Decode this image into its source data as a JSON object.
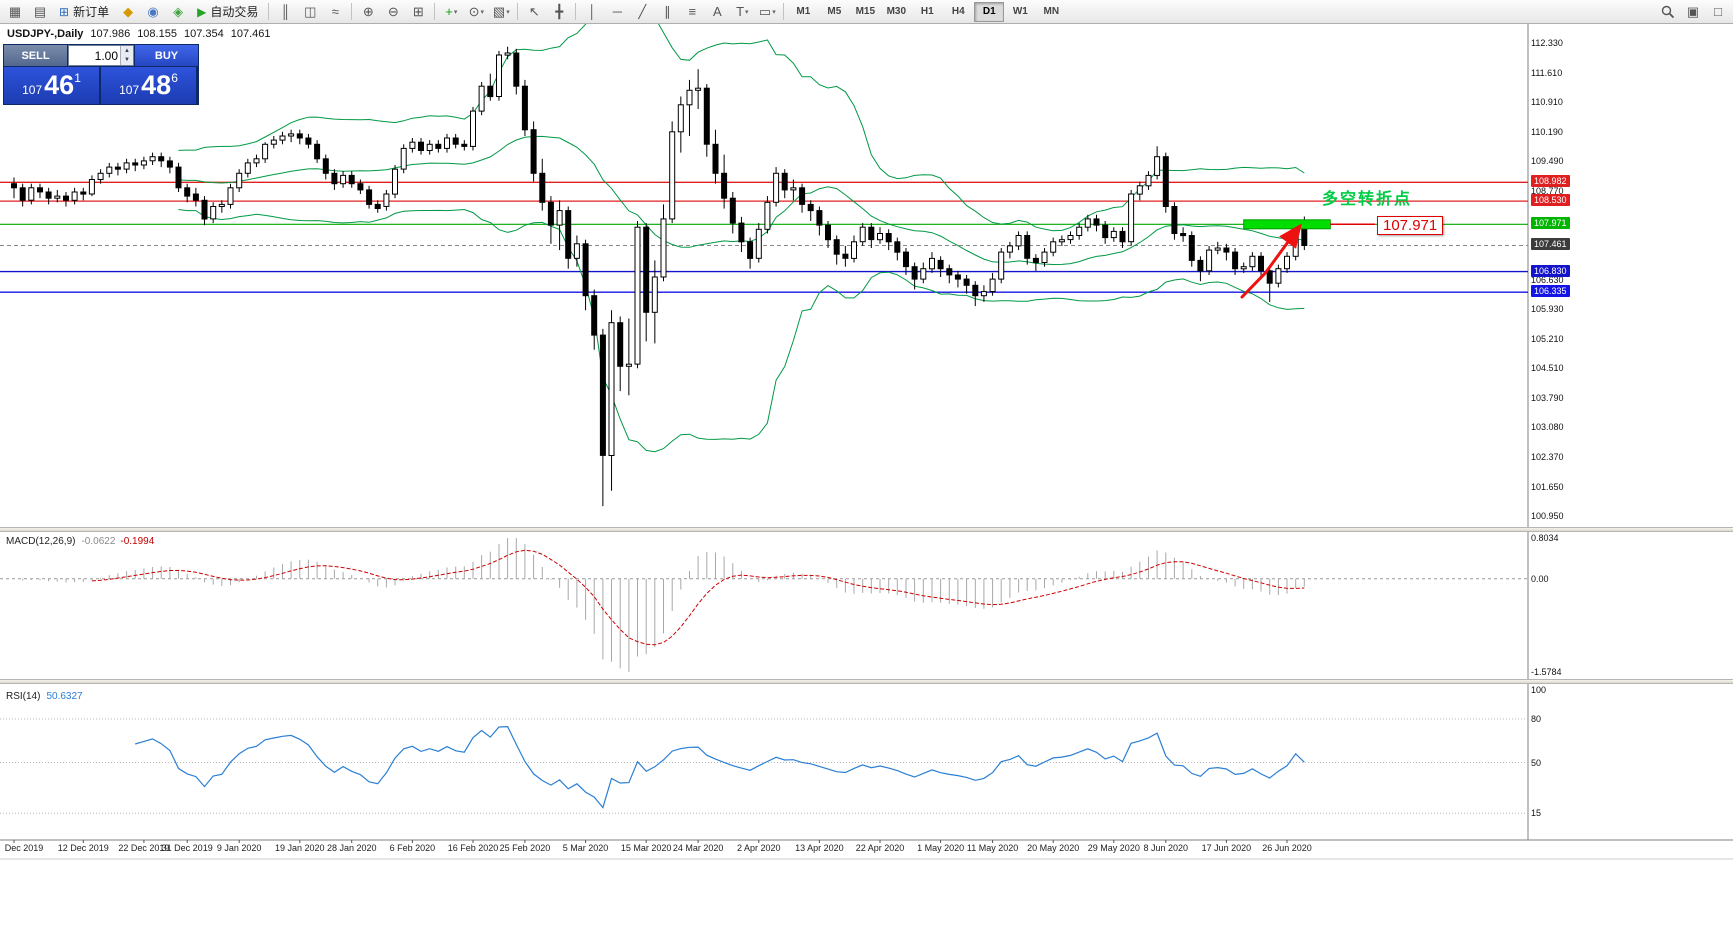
{
  "toolbar": {
    "new_order": "新订单",
    "autotrading": "自动交易",
    "items": [
      {
        "t": "icon",
        "name": "new-chart-icon",
        "g": "▦"
      },
      {
        "t": "icon",
        "name": "profiles-icon",
        "g": "▤"
      },
      {
        "t": "btn",
        "name": "new-order-button",
        "g": "⊞",
        "gc": "#2d6dc0",
        "label_key": "new_order"
      },
      {
        "t": "icon",
        "name": "market-watch-icon",
        "g": "◆",
        "c": "#d69a00"
      },
      {
        "t": "icon",
        "name": "navigator-icon",
        "g": "◉",
        "c": "#4a79c4"
      },
      {
        "t": "icon",
        "name": "terminal-icon",
        "g": "◈",
        "c": "#3fa33f"
      },
      {
        "t": "btn",
        "name": "autotrading-button",
        "g": "▶",
        "gc": "#27a327",
        "label_key": "autotrading"
      },
      {
        "t": "sep"
      },
      {
        "t": "icon",
        "name": "bar-chart-icon",
        "g": "║"
      },
      {
        "t": "icon",
        "name": "candlestick-chart-icon",
        "g": "◫"
      },
      {
        "t": "icon",
        "name": "line-chart-icon",
        "g": "≈"
      },
      {
        "t": "sep"
      },
      {
        "t": "icon",
        "name": "zoom-in-icon",
        "g": "⊕"
      },
      {
        "t": "icon",
        "name": "zoom-out-icon",
        "g": "⊖"
      },
      {
        "t": "icon",
        "name": "tile-windows-icon",
        "g": "⊞"
      },
      {
        "t": "sep"
      },
      {
        "t": "icon",
        "name": "indicators-icon",
        "g": "+",
        "c": "#1d9d1d",
        "caret": true
      },
      {
        "t": "icon",
        "name": "periods-icon",
        "g": "⊙",
        "caret": true
      },
      {
        "t": "icon",
        "name": "templates-icon",
        "g": "▧",
        "caret": true
      },
      {
        "t": "sep"
      },
      {
        "t": "icon",
        "name": "cursor-icon",
        "g": "↖"
      },
      {
        "t": "icon",
        "name": "crosshair-icon",
        "g": "╋"
      },
      {
        "t": "sep"
      },
      {
        "t": "icon",
        "name": "vertical-line-icon",
        "g": "│"
      },
      {
        "t": "icon",
        "name": "horizontal-line-icon",
        "g": "─"
      },
      {
        "t": "icon",
        "name": "trendline-icon",
        "g": "╱"
      },
      {
        "t": "icon",
        "name": "equidistant-channel-icon",
        "g": "∥"
      },
      {
        "t": "icon",
        "name": "fibonacci-icon",
        "g": "≡"
      },
      {
        "t": "icon",
        "name": "text-icon",
        "g": "A"
      },
      {
        "t": "icon",
        "name": "text-label-icon",
        "g": "T",
        "caret": true
      },
      {
        "t": "icon",
        "name": "shapes-icon",
        "g": "▭",
        "caret": true
      },
      {
        "t": "sep"
      }
    ],
    "timeframes": [
      "M1",
      "M5",
      "M15",
      "M30",
      "H1",
      "H4",
      "D1",
      "W1",
      "MN"
    ],
    "active_timeframe": "D1",
    "right_items": [
      {
        "name": "search-icon",
        "g": ""
      },
      {
        "name": "data-window-icon",
        "g": "▣"
      },
      {
        "name": "popup-prices-icon",
        "g": "□"
      }
    ]
  },
  "chart_header": {
    "symbol": "USDJPY-,Daily",
    "open": "107.986",
    "high": "108.155",
    "low": "107.354",
    "close": "107.461"
  },
  "trade_panel": {
    "sell_label": "SELL",
    "buy_label": "BUY",
    "lot_value": "1.00",
    "sell_price": {
      "prefix": "107",
      "main": "46",
      "sup": "1"
    },
    "buy_price": {
      "prefix": "107",
      "main": "48",
      "sup": "6"
    }
  },
  "annotations": {
    "turning_point_text": "多空转折点",
    "price_label": "107.971"
  },
  "indicators": {
    "macd": {
      "label": "MACD(12,26,9)",
      "value_main": "-0.0622",
      "value_signal": "-0.1994",
      "axis_top": "0.8034",
      "axis_zero": "0.00",
      "axis_bottom": "-1.5784"
    },
    "rsi": {
      "label": "RSI(14)",
      "value": "50.6327",
      "axis": [
        100,
        80,
        50,
        15
      ],
      "levels": [
        80,
        50,
        15
      ]
    }
  },
  "price_axis": {
    "regular": [
      "112.330",
      "111.610",
      "110.910",
      "110.190",
      "109.490",
      "108.770",
      "106.630",
      "105.930",
      "105.210",
      "104.510",
      "103.790",
      "103.080",
      "102.370",
      "101.650",
      "100.950"
    ],
    "special": [
      {
        "value": "108.982",
        "color": "#e02020"
      },
      {
        "value": "108.530",
        "color": "#e02020"
      },
      {
        "value": "107.971",
        "color": "#00b400"
      },
      {
        "value": "107.461",
        "color": "#3c3c3c"
      },
      {
        "value": "106.830",
        "color": "#1414cc"
      },
      {
        "value": "106.335",
        "color": "#1414e6"
      }
    ]
  },
  "time_axis": {
    "labels": [
      "Dec 2019",
      "12 Dec 2019",
      "22 Dec 2019",
      "31 Dec 2019",
      "9 Jan 2020",
      "19 Jan 2020",
      "28 Jan 2020",
      "6 Feb 2020",
      "16 Feb 2020",
      "25 Feb 2020",
      "5 Mar 2020",
      "15 Mar 2020",
      "24 Mar 2020",
      "2 Apr 2020",
      "13 Apr 2020",
      "22 Apr 2020",
      "1 May 2020",
      "11 May 2020",
      "20 May 2020",
      "29 May 2020",
      "8 Jun 2020",
      "17 Jun 2020",
      "26 Jun 2020"
    ],
    "tick_indices": [
      0,
      8,
      15,
      20,
      26,
      33,
      39,
      46,
      53,
      59,
      66,
      73,
      79,
      86,
      93,
      100,
      107,
      113,
      120,
      127,
      133,
      140,
      147
    ]
  },
  "chart_data": {
    "type": "candlestick",
    "symbol": "USDJPY",
    "timeframe": "Daily",
    "price_range": [
      100.7,
      112.75
    ],
    "ohlc": [
      [
        108.95,
        109.1,
        108.6,
        108.85
      ],
      [
        108.85,
        108.95,
        108.4,
        108.55
      ],
      [
        108.55,
        108.95,
        108.45,
        108.85
      ],
      [
        108.85,
        108.95,
        108.6,
        108.75
      ],
      [
        108.75,
        108.85,
        108.45,
        108.6
      ],
      [
        108.6,
        108.8,
        108.5,
        108.65
      ],
      [
        108.65,
        108.75,
        108.4,
        108.55
      ],
      [
        108.55,
        108.85,
        108.45,
        108.75
      ],
      [
        108.75,
        108.85,
        108.55,
        108.7
      ],
      [
        108.7,
        109.15,
        108.65,
        109.05
      ],
      [
        109.05,
        109.3,
        108.95,
        109.2
      ],
      [
        109.2,
        109.45,
        109.1,
        109.35
      ],
      [
        109.35,
        109.45,
        109.15,
        109.3
      ],
      [
        109.3,
        109.55,
        109.2,
        109.45
      ],
      [
        109.45,
        109.55,
        109.25,
        109.4
      ],
      [
        109.4,
        109.6,
        109.3,
        109.5
      ],
      [
        109.5,
        109.7,
        109.4,
        109.6
      ],
      [
        109.6,
        109.7,
        109.35,
        109.5
      ],
      [
        109.5,
        109.6,
        109.2,
        109.35
      ],
      [
        109.35,
        109.45,
        108.75,
        108.85
      ],
      [
        108.85,
        108.95,
        108.5,
        108.65
      ],
      [
        108.7,
        108.85,
        108.4,
        108.55
      ],
      [
        108.55,
        108.65,
        107.95,
        108.1
      ],
      [
        108.1,
        108.5,
        108.0,
        108.4
      ],
      [
        108.4,
        108.55,
        108.25,
        108.45
      ],
      [
        108.45,
        108.95,
        108.35,
        108.85
      ],
      [
        108.85,
        109.3,
        108.75,
        109.2
      ],
      [
        109.2,
        109.55,
        109.1,
        109.45
      ],
      [
        109.45,
        109.65,
        109.35,
        109.55
      ],
      [
        109.55,
        109.95,
        109.45,
        109.9
      ],
      [
        109.9,
        110.1,
        109.8,
        110.0
      ],
      [
        110.0,
        110.2,
        109.9,
        110.1
      ],
      [
        110.1,
        110.25,
        109.95,
        110.15
      ],
      [
        110.15,
        110.25,
        109.9,
        110.05
      ],
      [
        110.05,
        110.15,
        109.8,
        109.9
      ],
      [
        109.9,
        110.0,
        109.45,
        109.55
      ],
      [
        109.55,
        109.65,
        109.05,
        109.2
      ],
      [
        109.2,
        109.3,
        108.8,
        108.95
      ],
      [
        108.95,
        109.25,
        108.85,
        109.15
      ],
      [
        109.15,
        109.25,
        108.85,
        108.95
      ],
      [
        108.95,
        109.05,
        108.7,
        108.8
      ],
      [
        108.8,
        108.9,
        108.35,
        108.45
      ],
      [
        108.45,
        108.55,
        108.25,
        108.35
      ],
      [
        108.4,
        108.8,
        108.3,
        108.7
      ],
      [
        108.7,
        109.4,
        108.6,
        109.3
      ],
      [
        109.3,
        109.9,
        109.2,
        109.8
      ],
      [
        109.8,
        110.05,
        109.7,
        109.95
      ],
      [
        109.95,
        110.05,
        109.65,
        109.75
      ],
      [
        109.75,
        110.0,
        109.65,
        109.9
      ],
      [
        109.9,
        110.0,
        109.7,
        109.8
      ],
      [
        109.8,
        110.15,
        109.7,
        110.05
      ],
      [
        110.05,
        110.15,
        109.8,
        109.9
      ],
      [
        109.9,
        110.0,
        109.75,
        109.85
      ],
      [
        109.85,
        110.8,
        109.75,
        110.7
      ],
      [
        110.7,
        111.4,
        110.6,
        111.3
      ],
      [
        111.3,
        111.6,
        110.95,
        111.05
      ],
      [
        111.05,
        112.15,
        110.95,
        112.05
      ],
      [
        112.05,
        112.25,
        111.95,
        112.1
      ],
      [
        112.1,
        112.2,
        111.1,
        111.3
      ],
      [
        111.3,
        111.45,
        110.1,
        110.25
      ],
      [
        110.25,
        110.45,
        109.0,
        109.2
      ],
      [
        109.2,
        109.55,
        108.3,
        108.5
      ],
      [
        108.5,
        108.65,
        107.5,
        107.95
      ],
      [
        107.95,
        108.55,
        107.35,
        108.3
      ],
      [
        108.3,
        108.4,
        106.9,
        107.15
      ],
      [
        107.15,
        107.7,
        106.95,
        107.5
      ],
      [
        107.5,
        107.6,
        105.9,
        106.25
      ],
      [
        106.25,
        106.4,
        104.95,
        105.3
      ],
      [
        105.3,
        105.45,
        101.18,
        102.4
      ],
      [
        102.4,
        105.9,
        101.55,
        105.6
      ],
      [
        105.6,
        105.75,
        103.95,
        104.55
      ],
      [
        104.55,
        105.7,
        103.85,
        104.6
      ],
      [
        104.6,
        108.05,
        104.5,
        107.9
      ],
      [
        107.9,
        108.0,
        105.15,
        105.85
      ],
      [
        105.85,
        107.1,
        105.1,
        106.7
      ],
      [
        106.7,
        108.45,
        106.6,
        108.1
      ],
      [
        108.1,
        110.45,
        108.0,
        110.2
      ],
      [
        110.2,
        111.05,
        109.7,
        110.85
      ],
      [
        110.85,
        111.45,
        110.1,
        111.2
      ],
      [
        111.2,
        111.71,
        110.75,
        111.25
      ],
      [
        111.25,
        111.35,
        109.6,
        109.9
      ],
      [
        109.9,
        110.25,
        108.95,
        109.2
      ],
      [
        109.2,
        109.65,
        108.35,
        108.6
      ],
      [
        108.6,
        108.75,
        107.75,
        108.0
      ],
      [
        108.0,
        108.15,
        107.3,
        107.55
      ],
      [
        107.55,
        107.65,
        106.9,
        107.15
      ],
      [
        107.15,
        108.0,
        107.05,
        107.85
      ],
      [
        107.85,
        108.65,
        107.75,
        108.5
      ],
      [
        108.5,
        109.35,
        108.4,
        109.2
      ],
      [
        109.2,
        109.3,
        108.6,
        108.8
      ],
      [
        108.8,
        109.05,
        108.55,
        108.85
      ],
      [
        108.85,
        108.95,
        108.25,
        108.45
      ],
      [
        108.45,
        108.55,
        108.05,
        108.3
      ],
      [
        108.3,
        108.4,
        107.7,
        107.95
      ],
      [
        107.95,
        108.05,
        107.4,
        107.6
      ],
      [
        107.6,
        107.7,
        107.0,
        107.25
      ],
      [
        107.25,
        107.45,
        106.95,
        107.15
      ],
      [
        107.15,
        107.7,
        107.05,
        107.55
      ],
      [
        107.55,
        108.0,
        107.45,
        107.9
      ],
      [
        107.9,
        108.0,
        107.4,
        107.6
      ],
      [
        107.6,
        107.9,
        107.5,
        107.75
      ],
      [
        107.75,
        107.85,
        107.35,
        107.55
      ],
      [
        107.55,
        107.65,
        107.1,
        107.3
      ],
      [
        107.3,
        107.4,
        106.75,
        106.95
      ],
      [
        106.95,
        107.05,
        106.4,
        106.65
      ],
      [
        106.65,
        107.05,
        106.55,
        106.9
      ],
      [
        106.9,
        107.3,
        106.8,
        107.15
      ],
      [
        107.1,
        107.2,
        106.7,
        106.9
      ],
      [
        106.9,
        107.0,
        106.55,
        106.75
      ],
      [
        106.75,
        106.85,
        106.45,
        106.65
      ],
      [
        106.65,
        106.75,
        106.3,
        106.5
      ],
      [
        106.5,
        106.6,
        106.0,
        106.25
      ],
      [
        106.25,
        106.5,
        106.1,
        106.35
      ],
      [
        106.35,
        106.8,
        106.25,
        106.65
      ],
      [
        106.65,
        107.4,
        106.55,
        107.3
      ],
      [
        107.3,
        107.55,
        107.15,
        107.45
      ],
      [
        107.45,
        107.8,
        107.35,
        107.7
      ],
      [
        107.7,
        107.8,
        107.0,
        107.15
      ],
      [
        107.15,
        107.25,
        106.85,
        107.05
      ],
      [
        107.05,
        107.4,
        106.95,
        107.3
      ],
      [
        107.3,
        107.65,
        107.2,
        107.55
      ],
      [
        107.55,
        107.7,
        107.45,
        107.6
      ],
      [
        107.6,
        107.8,
        107.5,
        107.7
      ],
      [
        107.7,
        108.0,
        107.6,
        107.9
      ],
      [
        107.9,
        108.2,
        107.8,
        108.1
      ],
      [
        108.1,
        108.2,
        107.8,
        107.95
      ],
      [
        107.95,
        108.05,
        107.5,
        107.65
      ],
      [
        107.65,
        107.9,
        107.55,
        107.8
      ],
      [
        107.8,
        107.9,
        107.4,
        107.55
      ],
      [
        107.55,
        108.8,
        107.45,
        108.7
      ],
      [
        108.7,
        109.0,
        108.55,
        108.9
      ],
      [
        108.9,
        109.25,
        108.8,
        109.15
      ],
      [
        109.15,
        109.85,
        109.05,
        109.6
      ],
      [
        109.6,
        109.7,
        108.25,
        108.4
      ],
      [
        108.4,
        108.5,
        107.6,
        107.75
      ],
      [
        107.75,
        107.9,
        107.55,
        107.7
      ],
      [
        107.7,
        107.8,
        106.95,
        107.1
      ],
      [
        107.1,
        107.2,
        106.6,
        106.85
      ],
      [
        106.85,
        107.45,
        106.75,
        107.35
      ],
      [
        107.35,
        107.55,
        107.25,
        107.4
      ],
      [
        107.4,
        107.5,
        107.1,
        107.3
      ],
      [
        107.3,
        107.4,
        106.75,
        106.9
      ],
      [
        106.9,
        107.05,
        106.8,
        106.95
      ],
      [
        106.95,
        107.3,
        106.85,
        107.2
      ],
      [
        107.2,
        107.3,
        106.65,
        106.85
      ],
      [
        106.85,
        106.95,
        106.1,
        106.55
      ],
      [
        106.55,
        107.0,
        106.45,
        106.9
      ],
      [
        106.9,
        107.3,
        106.8,
        107.2
      ],
      [
        107.2,
        108.05,
        107.1,
        107.99
      ],
      [
        107.99,
        108.16,
        107.35,
        107.46
      ]
    ],
    "overlays": {
      "bollinger": {
        "period": 20,
        "deviations": 2,
        "color": "#009944"
      },
      "horizontal_lines": [
        {
          "price": 108.982,
          "color": "#e02020",
          "width": 1.4
        },
        {
          "price": 108.53,
          "color": "#e02020",
          "width": 1.2
        },
        {
          "price": 107.971,
          "color": "#00aa00",
          "width": 1.2
        },
        {
          "price": 106.83,
          "color": "#1414cc",
          "width": 1.4
        },
        {
          "price": 106.335,
          "color": "#1414e6",
          "width": 1.4
        }
      ],
      "current_price_line": {
        "price": 107.461,
        "color": "#888888",
        "style": "dashed"
      },
      "highlight_box": {
        "start_index": 142,
        "end_index": 152,
        "price": 107.971,
        "fill": "#00dd00",
        "stroke": "#00a000"
      },
      "trend_arrow": {
        "color": "#ee1111",
        "points": [
          [
            141.8,
            106.22
          ],
          [
            144.5,
            106.8
          ],
          [
            146.6,
            107.4
          ],
          [
            148.1,
            107.82
          ]
        ]
      }
    },
    "macd": {
      "fast": 12,
      "slow": 26,
      "signal": 9
    },
    "rsi": {
      "period": 14
    }
  }
}
